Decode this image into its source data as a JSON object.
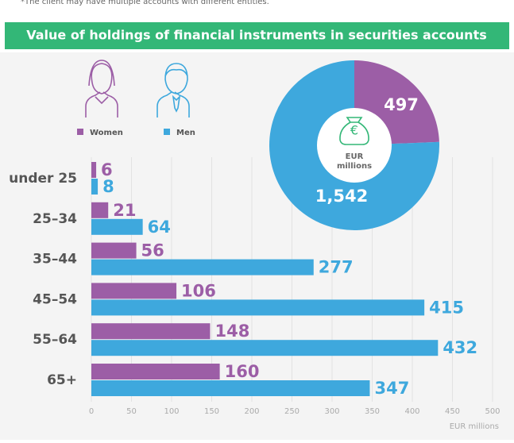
{
  "note": "*The client may have multiple accounts with different entities.",
  "chart_data": {
    "type": "bar",
    "title": "Value of holdings of financial instruments in securities accounts",
    "orientation": "horizontal",
    "categories": [
      "under 25",
      "25–34",
      "35–44",
      "45–54",
      "55–64",
      "65+"
    ],
    "series": [
      {
        "name": "Women",
        "color": "#9c5ea6",
        "values": [
          6,
          21,
          56,
          106,
          148,
          160
        ]
      },
      {
        "name": "Men",
        "color": "#3ea8dd",
        "values": [
          8,
          64,
          277,
          415,
          432,
          347
        ]
      }
    ],
    "xlim": [
      0,
      500
    ],
    "xticks": [
      0,
      50,
      100,
      150,
      200,
      250,
      300,
      350,
      400,
      450,
      500
    ],
    "xlabel": "EUR millions",
    "grid": true,
    "donut": {
      "values": [
        497,
        1542
      ],
      "value_labels": [
        "497",
        "1,542"
      ],
      "center_label": [
        "EUR",
        "millions"
      ]
    }
  }
}
